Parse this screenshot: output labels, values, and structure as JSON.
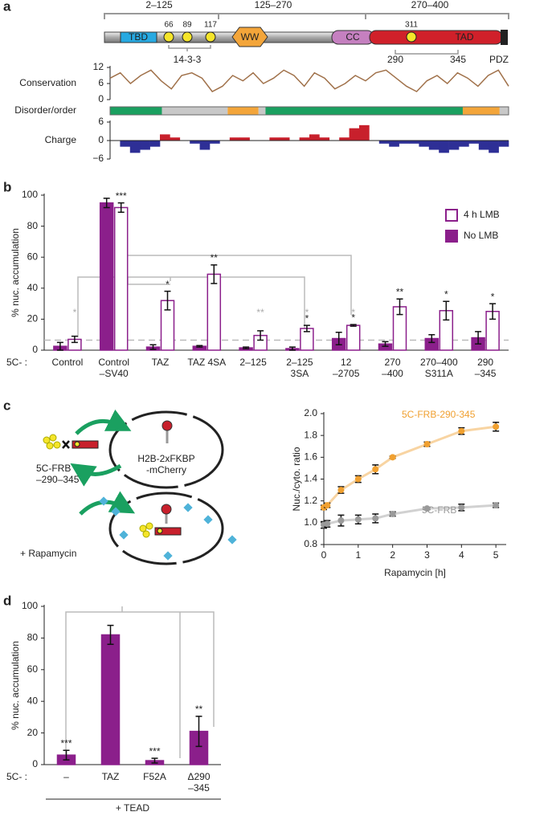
{
  "panel_labels": [
    "a",
    "b",
    "c",
    "d"
  ],
  "domain_map": {
    "regions": [
      "2–125",
      "125–270",
      "270–400"
    ],
    "domains": [
      "TBD",
      "WW",
      "CC",
      "TAD",
      "PDZ"
    ],
    "sites": [
      "66",
      "89",
      "117",
      "311"
    ],
    "site_label": "14-3-3",
    "range": [
      "290",
      "345"
    ]
  },
  "c_diagram": {
    "construct": [
      "5C-FRB",
      "–290–345"
    ],
    "reporter": [
      "H2B-2xFKBP",
      "-mCherry"
    ],
    "treatment": "+ Rapamycin"
  },
  "chart_data": [
    {
      "type": "line",
      "ylabel": "Conservation",
      "color": "#a0714a",
      "values": [
        8,
        10,
        6,
        9,
        11,
        7,
        4,
        9,
        10,
        8,
        3,
        5,
        9,
        7,
        10,
        6,
        8,
        11,
        9,
        5,
        10,
        8,
        4,
        6,
        9,
        7,
        10,
        11,
        8,
        5,
        3,
        7,
        9,
        6,
        10,
        8,
        5,
        9,
        11,
        5
      ],
      "ylim": [
        0,
        12
      ],
      "yticks": [
        0,
        6,
        12
      ]
    },
    {
      "type": "track",
      "ylabel": "Disorder/order",
      "xlim": [
        0,
        400
      ],
      "segments": [
        {
          "start": 0,
          "end": 52,
          "color": "#1aa060"
        },
        {
          "start": 52,
          "end": 118,
          "color": "#c8c8c8"
        },
        {
          "start": 118,
          "end": 149,
          "color": "#f3a53a"
        },
        {
          "start": 149,
          "end": 156,
          "color": "#c8c8c8"
        },
        {
          "start": 156,
          "end": 354,
          "color": "#1aa060"
        },
        {
          "start": 354,
          "end": 391,
          "color": "#f3a53a"
        },
        {
          "start": 391,
          "end": 400,
          "color": "#c8c8c8"
        }
      ]
    },
    {
      "type": "area",
      "ylabel": "Charge",
      "positive_color": "#c8202c",
      "negative_color": "#2e2f96",
      "values": [
        0,
        -2,
        -4,
        -3,
        -2,
        2,
        1,
        0,
        -1,
        -3,
        -1,
        0,
        1,
        1,
        0,
        0,
        1,
        1,
        0,
        1,
        2,
        1,
        0,
        1,
        4,
        5,
        0,
        -1,
        -2,
        -1,
        -1,
        -2,
        -3,
        -4,
        -3,
        -2,
        -1,
        -3,
        -4,
        -2
      ],
      "ylim": [
        -6,
        6
      ],
      "yticks": [
        6,
        0,
        {
          "value": -6,
          "label": "−6"
        }
      ]
    },
    {
      "type": "bar",
      "ylabel": "% nuc. accumulation",
      "prefix": "5C- :",
      "categories": [
        [
          "Control"
        ],
        [
          "Control",
          "–SV40"
        ],
        [
          "TAZ"
        ],
        [
          "TAZ 4SA"
        ],
        [
          "2–125"
        ],
        [
          "2–125",
          "3SA"
        ],
        [
          "12",
          "–2705"
        ],
        [
          "270",
          "–400"
        ],
        [
          "270–400",
          "S311A"
        ],
        [
          "290",
          "–345"
        ]
      ],
      "series": [
        {
          "name": "4 h LMB",
          "color": "#8b1f8b",
          "fill": "#ffffff",
          "values": [
            7,
            92,
            32,
            49,
            9.5,
            14,
            16,
            28,
            25.5,
            25
          ],
          "errors": [
            2,
            3,
            6,
            6,
            3,
            2,
            0.5,
            5,
            6,
            5
          ],
          "significance": [
            null,
            "***",
            "*",
            "**",
            null,
            "*",
            "*",
            "**",
            "*",
            "*"
          ]
        },
        {
          "name": "No LMB",
          "color": "#8b1f8b",
          "fill": "#8b1f8b",
          "values": [
            2.5,
            95,
            2,
            2.5,
            1.5,
            1,
            7.5,
            4,
            7.5,
            8
          ],
          "errors": [
            2.5,
            3,
            1.5,
            0.5,
            0.5,
            1,
            4,
            1.5,
            2.5,
            4
          ]
        }
      ],
      "comparison_labels": [
        "*",
        null,
        null,
        null,
        "**",
        "*",
        "*",
        null,
        null,
        null
      ],
      "ref_line": 6.5,
      "ylim": [
        0,
        100
      ],
      "yticks": [
        0,
        20,
        40,
        60,
        80,
        100
      ],
      "legend": "top-right"
    },
    {
      "type": "line",
      "xlabel": "Rapamycin [h]",
      "ylabel": "Nuc./cyto. ratio",
      "x": [
        0,
        0.1,
        0.5,
        1,
        1.5,
        2,
        3,
        4,
        5
      ],
      "series": [
        {
          "name": "5C-FRB-290-345",
          "color": "#f0a030",
          "values": [
            1.14,
            1.16,
            1.3,
            1.4,
            1.49,
            1.6,
            1.72,
            1.84,
            1.88
          ],
          "errors": [
            0.02,
            0.02,
            0.03,
            0.03,
            0.04,
            0.01,
            0.02,
            0.03,
            0.04
          ]
        },
        {
          "name": "5C-FRB",
          "color": "#9a9a9a",
          "values": [
            0.98,
            0.99,
            1.02,
            1.03,
            1.04,
            1.08,
            1.13,
            1.14,
            1.16
          ],
          "errors": [
            0.03,
            0.03,
            0.05,
            0.04,
            0.04,
            0.02,
            0.01,
            0.03,
            0.02
          ]
        }
      ],
      "xlim": [
        0,
        5.3
      ],
      "xticks": [
        0,
        1,
        2,
        3,
        4,
        5
      ],
      "ylim": [
        0.8,
        2.0
      ],
      "yticks": [
        0.8,
        {
          "value": 1,
          "label": "1.0"
        },
        1.2,
        1.4,
        1.6,
        1.8,
        {
          "value": 2,
          "label": "2.0"
        }
      ]
    },
    {
      "type": "bar",
      "ylabel": "% nuc. accumulation",
      "prefix": "5C- :",
      "group_label": "+ TEAD",
      "categories": [
        [
          "–"
        ],
        [
          "TAZ"
        ],
        [
          "F52A"
        ],
        [
          "Δ290",
          "–345"
        ]
      ],
      "series": [
        {
          "name": null,
          "color": "#8b1f8b",
          "fill": "#8b1f8b",
          "values": [
            6,
            82,
            2.5,
            21
          ],
          "errors": [
            3,
            6,
            1.5,
            9.5
          ],
          "significance": [
            "***",
            null,
            "***",
            "**"
          ]
        }
      ],
      "ylim": [
        0,
        100
      ],
      "yticks": [
        0,
        20,
        40,
        60,
        80,
        100
      ]
    }
  ]
}
